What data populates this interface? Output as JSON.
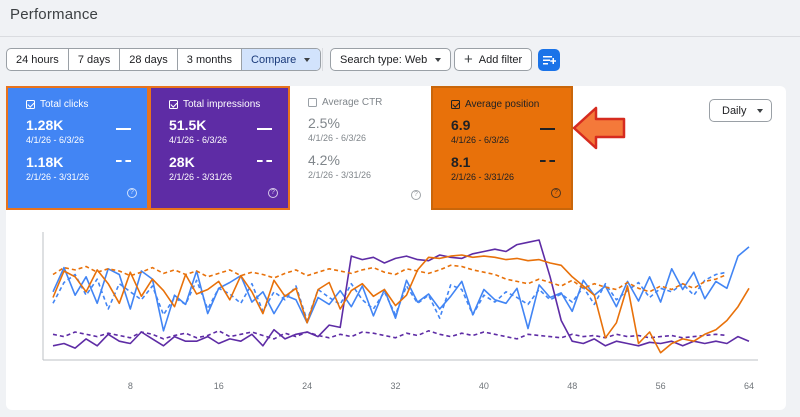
{
  "page_title": "Performance",
  "date_ranges": [
    {
      "label": "24 hours",
      "selected": false
    },
    {
      "label": "7 days",
      "selected": false
    },
    {
      "label": "28 days",
      "selected": false
    },
    {
      "label": "3 months",
      "selected": false
    },
    {
      "label": "Compare",
      "selected": true
    }
  ],
  "search_type_label": "Search type: Web",
  "add_filter_label": "Add filter",
  "metrics": {
    "clicks": {
      "label": "Total clicks",
      "checked": true,
      "current": "1.28K",
      "current_range": "4/1/26 - 6/3/26",
      "previous": "1.18K",
      "previous_range": "2/1/26 - 3/31/26",
      "color": "#4285f4"
    },
    "impressions": {
      "label": "Total impressions",
      "checked": true,
      "current": "51.5K",
      "current_range": "4/1/26 - 6/3/26",
      "previous": "28K",
      "previous_range": "2/1/26 - 3/31/26",
      "color": "#5e2ca5"
    },
    "ctr": {
      "label": "Average CTR",
      "checked": false,
      "current": "2.5%",
      "current_range": "4/1/26 - 6/3/26",
      "previous": "4.2%",
      "previous_range": "2/1/26 - 3/31/26",
      "color": "#ffffff"
    },
    "position": {
      "label": "Average position",
      "checked": true,
      "current": "6.9",
      "current_range": "4/1/26 - 6/3/26",
      "previous": "8.1",
      "previous_range": "2/1/26 - 3/31/26",
      "color": "#e8710a"
    }
  },
  "granularity_label": "Daily",
  "help_glyph": "?",
  "chart_data": {
    "type": "line",
    "x_ticks": [
      "8",
      "16",
      "24",
      "32",
      "40",
      "48",
      "56",
      "64"
    ],
    "xlim": [
      1,
      64
    ],
    "grid": false,
    "series": [
      {
        "metric": "clicks",
        "period": "current",
        "style": "solid",
        "color": "#4285f4",
        "values": [
          0.55,
          0.76,
          0.52,
          0.68,
          0.45,
          0.75,
          0.7,
          0.4,
          0.73,
          0.66,
          0.21,
          0.52,
          0.44,
          0.73,
          0.36,
          0.58,
          0.63,
          0.69,
          0.46,
          0.55,
          0.36,
          0.52,
          0.48,
          0.28,
          0.5,
          0.44,
          0.56,
          0.42,
          0.6,
          0.34,
          0.57,
          0.32,
          0.65,
          0.46,
          0.53,
          0.4,
          0.51,
          0.64,
          0.35,
          0.57,
          0.48,
          0.45,
          0.58,
          0.23,
          0.61,
          0.5,
          0.54,
          0.38,
          0.65,
          0.52,
          0.6,
          0.42,
          0.64,
          0.47,
          0.68,
          0.46,
          0.75,
          0.57,
          0.72,
          0.49,
          0.64,
          0.58,
          0.86,
          0.94
        ]
      },
      {
        "metric": "clicks",
        "period": "previous",
        "style": "dashed",
        "color": "#4285f4",
        "values": [
          0.45,
          0.63,
          0.7,
          0.52,
          0.66,
          0.4,
          0.62,
          0.55,
          0.48,
          0.6,
          0.35,
          0.5,
          0.44,
          0.65,
          0.4,
          0.58,
          0.53,
          0.45,
          0.62,
          0.38,
          0.55,
          0.48,
          0.6,
          0.3,
          0.57,
          0.5,
          0.44,
          0.62,
          0.48,
          0.4,
          0.55,
          0.35,
          0.6,
          0.45,
          0.52,
          0.32,
          0.61,
          0.57,
          0.35,
          0.52,
          0.46,
          0.55,
          0.5,
          0.44,
          0.57,
          0.48,
          0.53,
          0.46,
          0.59,
          0.44,
          0.62,
          0.48,
          0.56,
          0.63,
          0.5,
          0.58,
          0.55,
          0.62,
          0.52,
          0.65,
          0.7,
          0.72
        ]
      },
      {
        "metric": "impressions",
        "period": "current",
        "style": "solid",
        "color": "#5e2ca5",
        "values": [
          0.08,
          0.1,
          0.06,
          0.14,
          0.08,
          0.18,
          0.12,
          0.1,
          0.2,
          0.14,
          0.08,
          0.16,
          0.12,
          0.12,
          0.16,
          0.1,
          0.14,
          0.12,
          0.18,
          0.08,
          0.22,
          0.14,
          0.18,
          0.2,
          0.16,
          0.26,
          0.24,
          0.86,
          0.83,
          0.85,
          0.8,
          0.84,
          0.86,
          0.83,
          0.82,
          0.87,
          0.85,
          0.84,
          0.88,
          0.9,
          0.92,
          0.9,
          0.96,
          0.98,
          1.0,
          0.68,
          0.3,
          0.12,
          0.1,
          0.14,
          0.08,
          0.12,
          0.1,
          0.08,
          0.11,
          0.1,
          0.12,
          0.08,
          0.12,
          0.1,
          0.12,
          0.1,
          0.16,
          0.12
        ]
      },
      {
        "metric": "impressions",
        "period": "previous",
        "style": "dashed",
        "color": "#5e2ca5",
        "values": [
          0.18,
          0.16,
          0.2,
          0.18,
          0.16,
          0.19,
          0.17,
          0.15,
          0.2,
          0.18,
          0.14,
          0.17,
          0.19,
          0.15,
          0.17,
          0.21,
          0.16,
          0.18,
          0.2,
          0.17,
          0.14,
          0.19,
          0.16,
          0.2,
          0.17,
          0.15,
          0.18,
          0.16,
          0.2,
          0.19,
          0.17,
          0.15,
          0.19,
          0.17,
          0.21,
          0.18,
          0.16,
          0.19,
          0.17,
          0.2,
          0.18,
          0.16,
          0.14,
          0.18,
          0.17,
          0.16,
          0.15,
          0.18,
          0.16,
          0.17,
          0.15,
          0.18,
          0.16,
          0.17,
          0.15,
          0.16,
          0.17,
          0.15,
          0.16,
          0.17,
          0.18,
          0.17
        ]
      },
      {
        "metric": "position",
        "period": "current",
        "style": "solid",
        "color": "#e8710a",
        "values": [
          0.5,
          0.73,
          0.68,
          0.55,
          0.74,
          0.62,
          0.45,
          0.72,
          0.51,
          0.66,
          0.56,
          0.42,
          0.7,
          0.53,
          0.57,
          0.64,
          0.48,
          0.69,
          0.55,
          0.36,
          0.65,
          0.51,
          0.58,
          0.28,
          0.57,
          0.63,
          0.4,
          0.56,
          0.62,
          0.51,
          0.57,
          0.43,
          0.52,
          0.74,
          0.85,
          0.84,
          0.86,
          0.87,
          0.85,
          0.86,
          0.85,
          0.83,
          0.84,
          0.82,
          0.83,
          0.8,
          0.78,
          0.68,
          0.6,
          0.52,
          0.15,
          0.28,
          0.6,
          0.1,
          0.2,
          0.02,
          0.1,
          0.14,
          0.12,
          0.18,
          0.22,
          0.3,
          0.42,
          0.58
        ]
      },
      {
        "metric": "position",
        "period": "previous",
        "style": "dashed",
        "color": "#e8710a",
        "values": [
          0.7,
          0.76,
          0.74,
          0.77,
          0.72,
          0.75,
          0.73,
          0.69,
          0.72,
          0.76,
          0.71,
          0.74,
          0.7,
          0.73,
          0.68,
          0.71,
          0.74,
          0.69,
          0.72,
          0.7,
          0.67,
          0.71,
          0.74,
          0.69,
          0.72,
          0.75,
          0.73,
          0.71,
          0.74,
          0.76,
          0.72,
          0.7,
          0.75,
          0.73,
          0.71,
          0.74,
          0.78,
          0.77,
          0.74,
          0.72,
          0.7,
          0.66,
          0.64,
          0.62,
          0.66,
          0.63,
          0.6,
          0.65,
          0.58,
          0.62,
          0.59,
          0.57,
          0.63,
          0.58,
          0.55,
          0.6,
          0.57,
          0.62,
          0.58,
          0.64,
          0.66,
          0.7
        ]
      }
    ]
  }
}
